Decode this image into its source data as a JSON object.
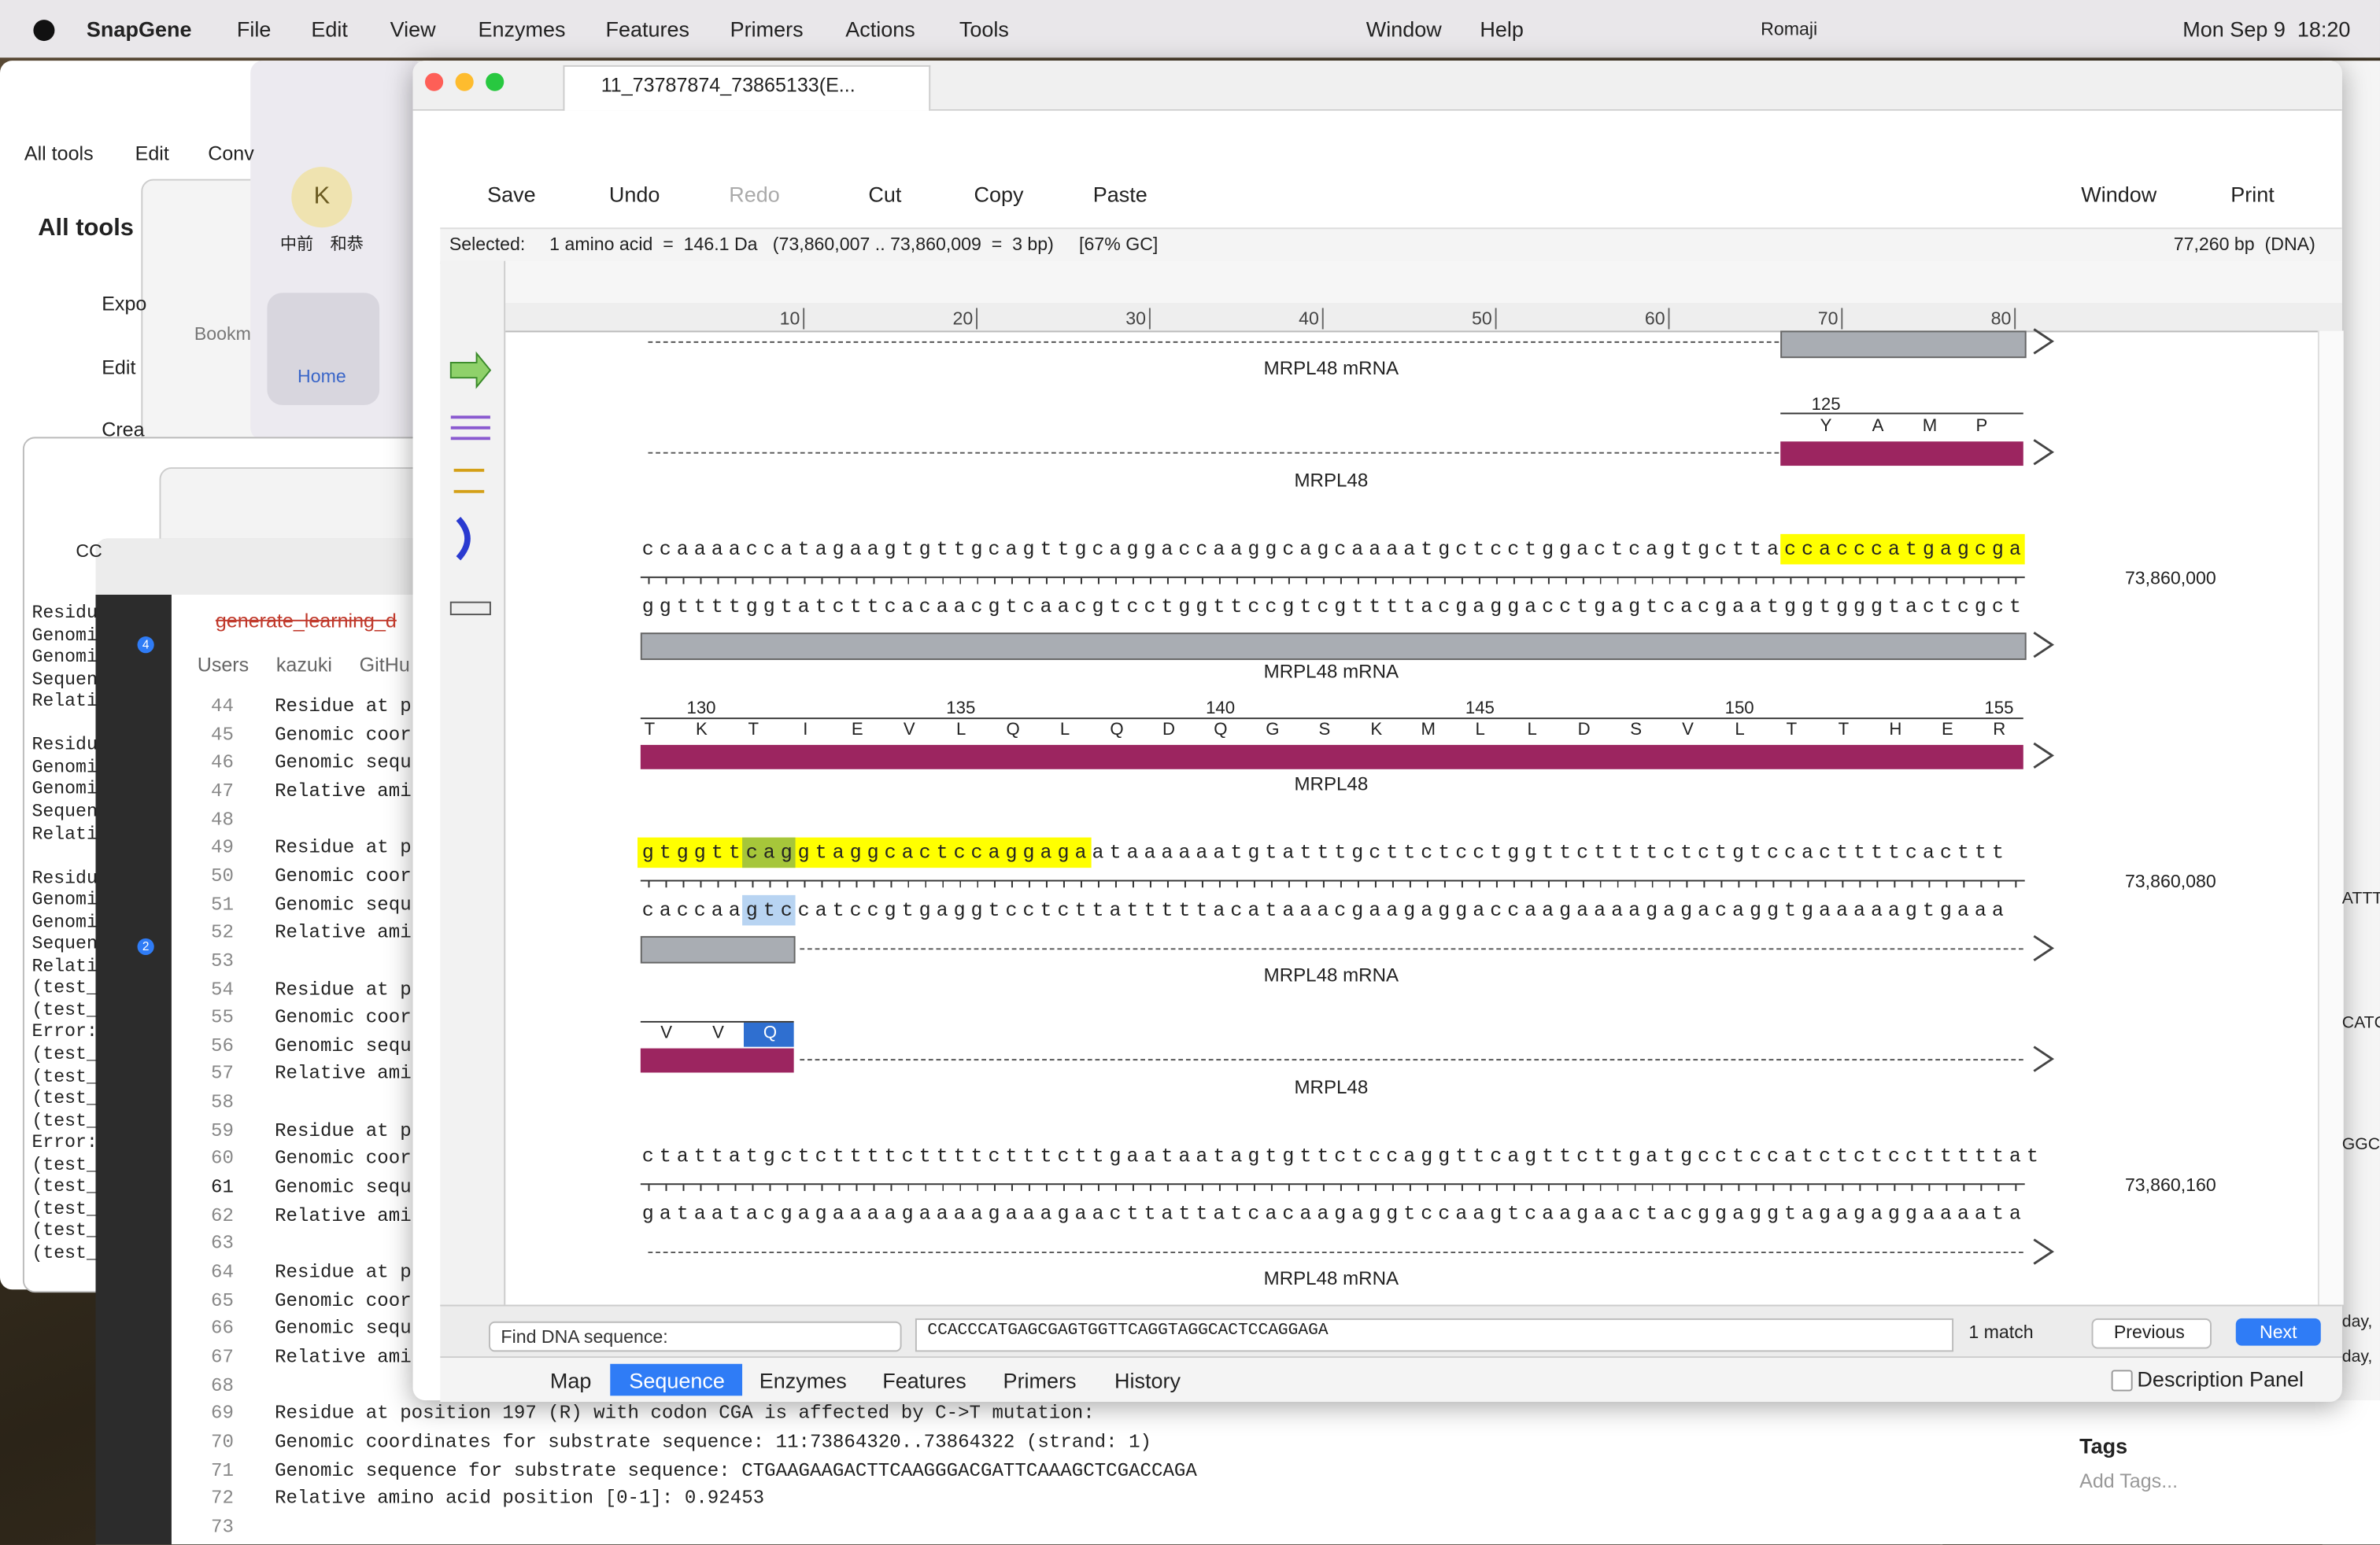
{
  "menu_bar": {
    "app": "SnapGene",
    "items": [
      "File",
      "Edit",
      "View",
      "Enzymes",
      "Features",
      "Primers",
      "Actions",
      "Tools",
      "Window",
      "Help"
    ],
    "input": "Romaji",
    "clock": "Mon Sep 9  18:20"
  },
  "back_windows": {
    "tabs": [
      "All tools",
      "Edit",
      "Conv"
    ],
    "heading": "All tools",
    "tools": [
      "Expo",
      "Edit",
      "Crea"
    ],
    "bookmarks": "Bookm",
    "avatar": "K",
    "user": "中前　和恭",
    "home": "Home",
    "search": "CC",
    "terminal_groups": [
      [
        "Residu",
        "Genomi",
        "Genomi",
        "Sequen",
        "Relati"
      ],
      [
        "Residu",
        "Genomi",
        "Genomi",
        "Sequen",
        "Relati"
      ],
      [
        "Residu",
        "Genomi",
        "Genomi",
        "Sequen",
        "Relati",
        "(test_",
        "(test_",
        "Error:",
        "(test_",
        "(test_",
        "(test_",
        "(test_",
        "Error:",
        "(test_",
        "(test_",
        "(test_",
        "(test_",
        "(test_"
      ]
    ],
    "right_edge": [
      "ATTT",
      "CATC",
      "GGCC",
      "day,",
      "day,"
    ],
    "tags": "Tags",
    "add_tags": "Add Tags..."
  },
  "editor": {
    "file": "generate_learning_d",
    "breadcrumb": [
      "Users",
      "kazuki",
      "GitHu"
    ],
    "badges": [
      4,
      2
    ],
    "lines": [
      {
        "number": 44,
        "text": "Residue at p"
      },
      {
        "number": 45,
        "text": "Genomic coor"
      },
      {
        "number": 46,
        "text": "Genomic sequ"
      },
      {
        "number": 47,
        "text": "Relative ami"
      },
      {
        "number": 48
      },
      {
        "number": 49,
        "text": "Residue at p"
      },
      {
        "number": 50,
        "text": "Genomic coor"
      },
      {
        "number": 51,
        "text": "Genomic sequ"
      },
      {
        "number": 52,
        "text": "Relative ami"
      },
      {
        "number": 53
      },
      {
        "number": 54,
        "text": "Residue at p"
      },
      {
        "number": 55,
        "text": "Genomic coor"
      },
      {
        "number": 56,
        "text": "Genomic sequ"
      },
      {
        "number": 57,
        "text": "Relative ami"
      },
      {
        "number": 58
      },
      {
        "number": 59,
        "text": "Residue at p"
      },
      {
        "number": 60,
        "text": "Genomic coor"
      },
      {
        "number": 61,
        "text": "Genomic sequ"
      },
      {
        "number": 62,
        "text": "Relative ami"
      },
      {
        "number": 63
      },
      {
        "number": 64,
        "text": "Residue at p"
      },
      {
        "number": 65,
        "text": "Genomic coor"
      },
      {
        "number": 66,
        "text": "Genomic sequ"
      },
      {
        "number": 67,
        "text": "Relative ami"
      },
      {
        "number": 68
      },
      {
        "number": 69,
        "text": "Residue at position 197 (R) with codon CGA is affected by C->T mutation:"
      },
      {
        "number": 70,
        "text": "Genomic coordinates for substrate sequence: 11:73864320..73864322 (strand: 1)"
      },
      {
        "number": 71,
        "text": "Genomic sequence for substrate sequence: CTGAAGAAGACTTCAAGGGACGATTCAAAGCTCGACCAGA"
      },
      {
        "number": 72,
        "text": "Relative amino acid position [0-1]: 0.92453"
      },
      {
        "number": 73
      }
    ]
  },
  "snapgene": {
    "tab": "11_73787874_73865133(E...",
    "toolbar": [
      "Save",
      "Undo",
      "Redo",
      "Cut",
      "Copy",
      "Paste",
      "Window",
      "Print"
    ],
    "selected_label": "Selected:",
    "selected_info": "1 amino acid  =  146.1 Da   (73,860,007 .. 73,860,009  =  3 bp)     [67% GC]",
    "length": "77,260 bp  (DNA)",
    "ruler": [
      10,
      20,
      30,
      40,
      50,
      60,
      70,
      80
    ],
    "feature_mrna": "MRPL48 mRNA",
    "feature_cds": "MRPL48",
    "translation_1": {
      "numbers": [
        125
      ],
      "residues": [
        "Y",
        "A",
        "M",
        "P"
      ]
    },
    "row_1": {
      "top": "ccaaaaccatagaagtgttgcagttgcaggaccaaggcagcaaaatgctcctggactcagtgcttaccacccatgagcga",
      "bottom": "ggttttggtatcttcacaacgtcaacgtcctggttccgtcgttttacgaggacctgagtcacgaatggtgggtactcgct",
      "coordinate": "73,860,000"
    },
    "translation_2": {
      "numbers": [
        130,
        135,
        140,
        145,
        150,
        155
      ],
      "residues": [
        "T",
        "K",
        "T",
        "I",
        "E",
        "V",
        "L",
        "Q",
        "L",
        "Q",
        "D",
        "Q",
        "G",
        "S",
        "K",
        "M",
        "L",
        "L",
        "D",
        "S",
        "V",
        "L",
        "T",
        "T",
        "H",
        "E",
        "R"
      ]
    },
    "row_2": {
      "top": "gtggttcaggtaggcactccaggagaataaaaaatgtatttgcttctcctggttcttttctctgtccacttttcacttt",
      "bottom": "caccaagtccatccgtgaggtcctcttatttttacataaacgaagaggaccaagaaaagagacaggtgaaaaagtgaaa",
      "coordinate": "73,860,080"
    },
    "translation_3": {
      "residues": [
        "V",
        "V",
        "Q"
      ]
    },
    "row_3": {
      "top": "ctattatgctcttttcttttctttcttgaataatagtgttctccaggttcagttcttgatgcctccatctctcctttttat",
      "bottom": "gataatacgagaaaagaaaagaaagaacttattatcacaagaggtccaagtcaagaactacggaggtagagaggaaaata",
      "coordinate": "73,860,160"
    },
    "find_label": "Find DNA sequence:",
    "find_query": "CCACCCATGAGCGAGTGGTTCAGGTAGGCACTCCAGGAGA",
    "match": "1 match",
    "previous": "Previous",
    "next": "Next",
    "view_tabs": [
      "Map",
      "Sequence",
      "Enzymes",
      "Features",
      "Primers",
      "History"
    ],
    "description_panel": "Description Panel"
  }
}
